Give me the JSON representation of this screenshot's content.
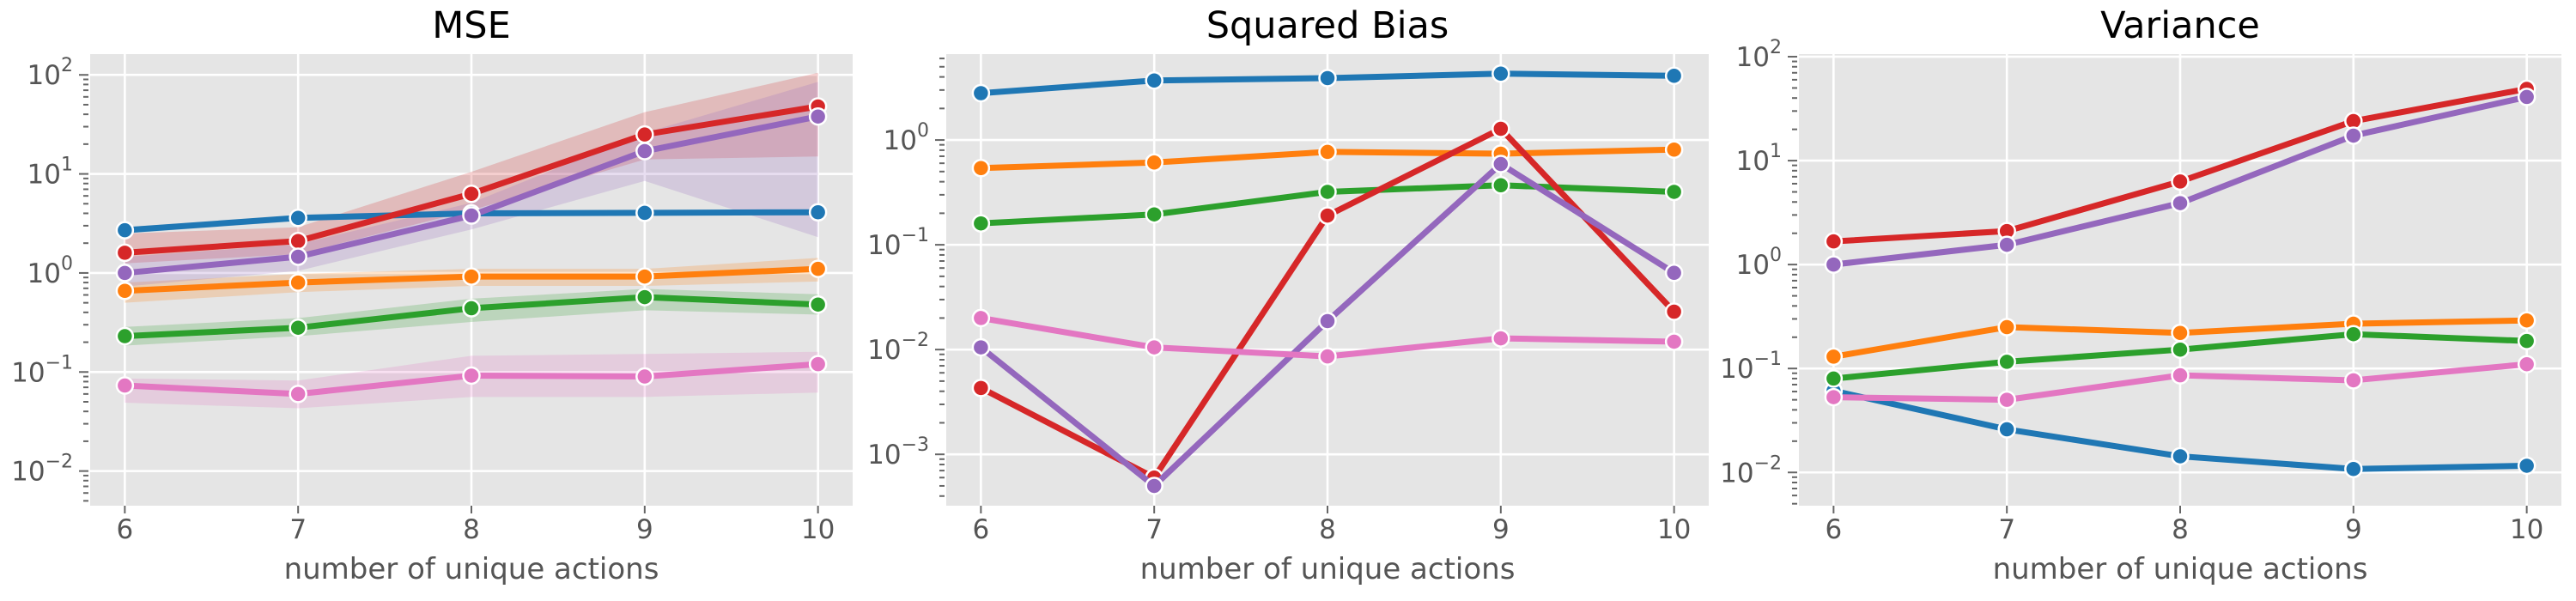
{
  "figure": {
    "background": "#ffffff",
    "plot_background": "#e5e5e5",
    "grid_color": "#ffffff",
    "tick_color": "#666666",
    "tick_label_color": "#555555",
    "axis_label_color": "#555555",
    "title_color": "#000000"
  },
  "chart_data": [
    {
      "type": "line",
      "title": "MSE",
      "xlabel": "number of unique actions",
      "x": [
        6,
        7,
        8,
        9,
        10
      ],
      "x_tick_labels": [
        "6",
        "7",
        "8",
        "9",
        "10"
      ],
      "xlim": [
        5.8,
        10.2
      ],
      "y_scale": "log",
      "y_tick_exponents": [
        2,
        1,
        0,
        -1,
        -2
      ],
      "ylim_exponents": [
        -2.35,
        2.21
      ],
      "grid": true,
      "legend": "none",
      "series": [
        {
          "name": "blue",
          "color": "#1f77b4",
          "values": [
            2.7,
            3.6,
            4.0,
            4.05,
            4.1
          ],
          "band_lower": [
            2.5,
            3.35,
            3.75,
            3.8,
            3.85
          ],
          "band_upper": [
            2.9,
            3.8,
            4.2,
            4.3,
            4.35
          ]
        },
        {
          "name": "orange",
          "color": "#ff7f0e",
          "values": [
            0.66,
            0.8,
            0.92,
            0.92,
            1.1
          ],
          "band_lower": [
            0.5,
            0.64,
            0.74,
            0.74,
            0.82
          ],
          "band_upper": [
            0.8,
            0.98,
            1.1,
            1.1,
            1.42
          ]
        },
        {
          "name": "green",
          "color": "#2ca02c",
          "values": [
            0.23,
            0.28,
            0.44,
            0.57,
            0.48
          ],
          "band_lower": [
            0.185,
            0.23,
            0.32,
            0.42,
            0.38
          ],
          "band_upper": [
            0.285,
            0.35,
            0.55,
            0.69,
            0.61
          ]
        },
        {
          "name": "red",
          "color": "#d62728",
          "values": [
            1.6,
            2.1,
            6.3,
            25,
            48
          ],
          "band_lower": [
            1.25,
            1.55,
            4.3,
            14,
            15
          ],
          "band_upper": [
            2.5,
            2.9,
            10.5,
            42,
            105
          ]
        },
        {
          "name": "purple",
          "color": "#9467bd",
          "values": [
            1.0,
            1.46,
            3.8,
            17,
            38
          ],
          "band_lower": [
            0.73,
            1.05,
            2.75,
            8.5,
            2.3
          ],
          "band_upper": [
            1.45,
            1.95,
            5.1,
            26,
            85
          ]
        },
        {
          "name": "pink",
          "color": "#e377c2",
          "values": [
            0.073,
            0.06,
            0.092,
            0.09,
            0.12
          ],
          "band_lower": [
            0.049,
            0.043,
            0.056,
            0.056,
            0.062
          ],
          "band_upper": [
            0.086,
            0.082,
            0.146,
            0.152,
            0.16
          ]
        }
      ]
    },
    {
      "type": "line",
      "title": "Squared Bias",
      "xlabel": "number of unique actions",
      "x": [
        6,
        7,
        8,
        9,
        10
      ],
      "x_tick_labels": [
        "6",
        "7",
        "8",
        "9",
        "10"
      ],
      "xlim": [
        5.8,
        10.2
      ],
      "y_scale": "log",
      "y_tick_exponents": [
        0,
        -1,
        -2,
        -3
      ],
      "ylim_exponents": [
        -3.49,
        0.82
      ],
      "grid": true,
      "legend": "none",
      "series": [
        {
          "name": "blue",
          "color": "#1f77b4",
          "values": [
            2.8,
            3.7,
            3.9,
            4.3,
            4.1
          ]
        },
        {
          "name": "orange",
          "color": "#ff7f0e",
          "values": [
            0.54,
            0.61,
            0.77,
            0.74,
            0.81
          ]
        },
        {
          "name": "green",
          "color": "#2ca02c",
          "values": [
            0.16,
            0.195,
            0.32,
            0.37,
            0.32
          ]
        },
        {
          "name": "red",
          "color": "#d62728",
          "values": [
            0.0043,
            0.0006,
            0.19,
            1.28,
            0.023
          ]
        },
        {
          "name": "purple",
          "color": "#9467bd",
          "values": [
            0.0105,
            0.0005,
            0.0187,
            0.59,
            0.054
          ]
        },
        {
          "name": "pink",
          "color": "#e377c2",
          "values": [
            0.02,
            0.0105,
            0.0086,
            0.0128,
            0.0119
          ]
        }
      ]
    },
    {
      "type": "line",
      "title": "Variance",
      "xlabel": "number of unique actions",
      "x": [
        6,
        7,
        8,
        9,
        10
      ],
      "x_tick_labels": [
        "6",
        "7",
        "8",
        "9",
        "10"
      ],
      "xlim": [
        5.8,
        10.2
      ],
      "y_scale": "log",
      "y_tick_exponents": [
        2,
        1,
        0,
        -1,
        -2
      ],
      "ylim_exponents": [
        -2.32,
        2.025
      ],
      "grid": true,
      "legend": "none",
      "series": [
        {
          "name": "blue",
          "color": "#1f77b4",
          "values": [
            0.061,
            0.026,
            0.0143,
            0.0108,
            0.0116
          ]
        },
        {
          "name": "orange",
          "color": "#ff7f0e",
          "values": [
            0.13,
            0.25,
            0.22,
            0.27,
            0.29
          ]
        },
        {
          "name": "green",
          "color": "#2ca02c",
          "values": [
            0.08,
            0.116,
            0.152,
            0.214,
            0.184
          ]
        },
        {
          "name": "red",
          "color": "#d62728",
          "values": [
            1.67,
            2.1,
            6.3,
            24,
            49
          ]
        },
        {
          "name": "purple",
          "color": "#9467bd",
          "values": [
            1.0,
            1.55,
            3.9,
            17.4,
            41
          ]
        },
        {
          "name": "pink",
          "color": "#e377c2",
          "values": [
            0.053,
            0.05,
            0.086,
            0.077,
            0.11
          ]
        }
      ]
    }
  ]
}
